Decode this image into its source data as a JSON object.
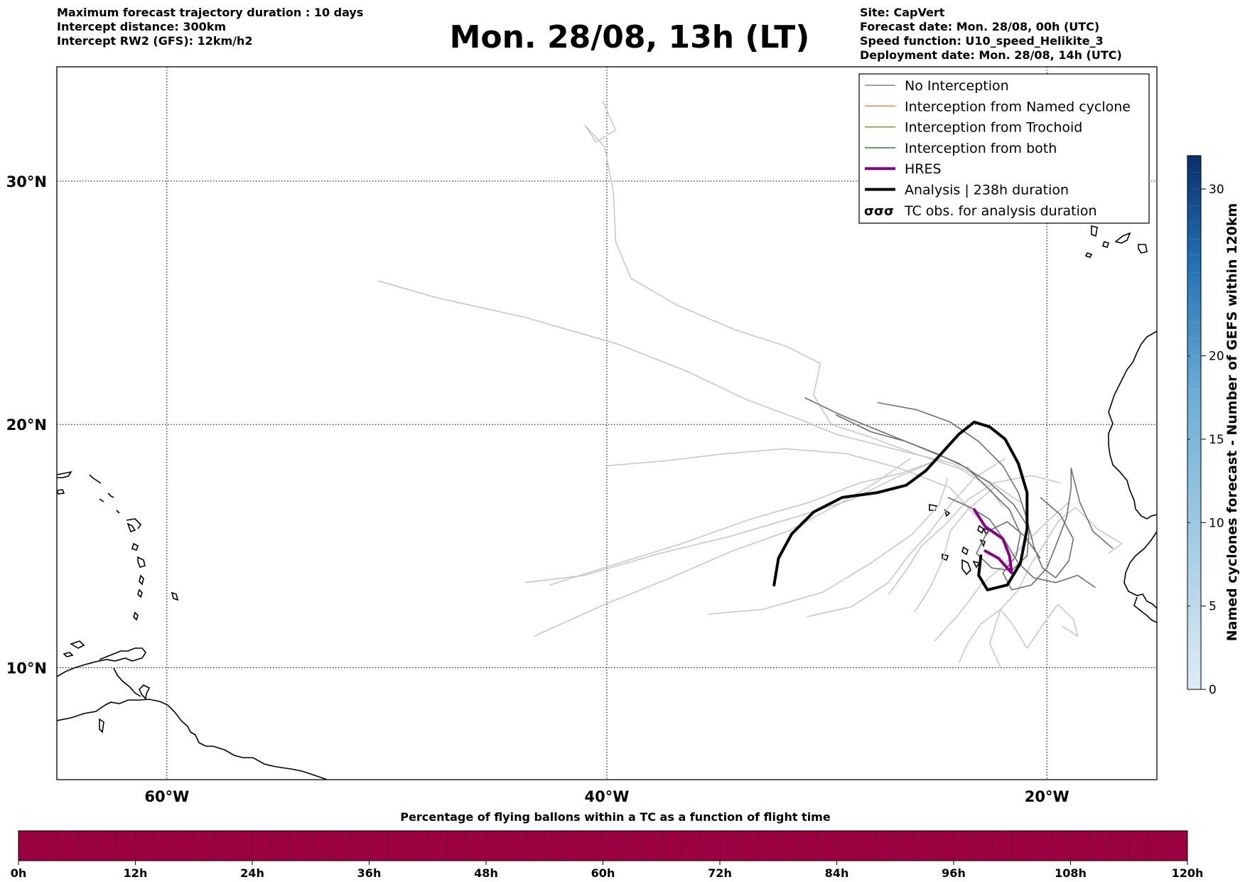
{
  "header": {
    "left_lines": [
      "Maximum forecast trajectory duration : 10 days",
      "Intercept distance: 300km",
      "Intercept RW2 (GFS):  12km/h2"
    ],
    "title": "Mon. 28/08, 13h (LT)",
    "right_lines": [
      "Site: CapVert",
      "Forecast date: Mon. 28/08, 00h (UTC)",
      "Speed function: U10_speed_Helikite_3",
      "Deployment date: Mon. 28/08, 14h (UTC)"
    ]
  },
  "map": {
    "lon_ticks": [
      "60°W",
      "40°W",
      "20°W"
    ],
    "lat_ticks": [
      "30°N",
      "20°N",
      "10°N"
    ],
    "lon_tick_values": [
      -60,
      -40,
      -20
    ],
    "lat_tick_values": [
      30,
      20,
      10
    ],
    "extent": {
      "lon": [
        -65,
        -15
      ],
      "lat": [
        5.4,
        34.7
      ]
    },
    "gridlines": "dotted"
  },
  "legend": {
    "placement": "top-right",
    "items": [
      {
        "label": "No Interception",
        "color": "#808080",
        "style": "thin"
      },
      {
        "label": "Interception from Named cyclone",
        "color": "#ff7f50",
        "style": "thin"
      },
      {
        "label": "Interception from Trochoid",
        "color": "#8b8b22",
        "style": "thin"
      },
      {
        "label": "Interception from both",
        "color": "#228b22",
        "style": "thin"
      },
      {
        "label": "HRES",
        "color": "#8b008b",
        "style": "thick"
      },
      {
        "label": "Analysis | 238h duration",
        "color": "#000000",
        "style": "thick"
      },
      {
        "label": "TC obs. for analysis duration",
        "color": "#000000",
        "style": "symbol",
        "symbol_text": "σσσ"
      }
    ]
  },
  "colorbar_right": {
    "label": "Named cyclones forecast - Number of GEFS within 120km",
    "ticks": [
      "0",
      "5",
      "10",
      "15",
      "20",
      "30"
    ],
    "tick_values": [
      0,
      5,
      10,
      15,
      20,
      30
    ],
    "max": 32,
    "colormap": "Blues"
  },
  "colorbar_bottom": {
    "title": "Percentage of flying ballons within a TC as a function of flight time",
    "ticks": [
      "0h",
      "12h",
      "24h",
      "36h",
      "48h",
      "60h",
      "72h",
      "84h",
      "96h",
      "108h",
      "120h"
    ],
    "tick_values": [
      0,
      12,
      24,
      36,
      48,
      60,
      72,
      84,
      96,
      108,
      120
    ],
    "fill_color": "#9b0040"
  },
  "chart_data": {
    "type": "line",
    "x_axis": "longitude",
    "y_axis": "latitude",
    "series": [
      {
        "name": "HRES",
        "color": "#8b008b",
        "points": [
          [
            -23.3,
            16.5
          ],
          [
            -22.8,
            15.8
          ],
          [
            -22.0,
            15.3
          ],
          [
            -21.7,
            14.6
          ],
          [
            -21.6,
            13.9
          ],
          [
            -22.2,
            14.5
          ],
          [
            -22.8,
            14.8
          ]
        ]
      },
      {
        "name": "Analysis | 238h duration",
        "color": "#000000",
        "points": [
          [
            -32.4,
            13.4
          ],
          [
            -32.2,
            14.5
          ],
          [
            -31.6,
            15.5
          ],
          [
            -30.6,
            16.4
          ],
          [
            -29.3,
            17.0
          ],
          [
            -27.7,
            17.2
          ],
          [
            -26.4,
            17.5
          ],
          [
            -25.5,
            18.1
          ],
          [
            -24.8,
            18.8
          ],
          [
            -24.0,
            19.6
          ],
          [
            -23.3,
            20.1
          ],
          [
            -22.6,
            19.9
          ],
          [
            -21.9,
            19.4
          ],
          [
            -21.3,
            18.4
          ],
          [
            -20.9,
            17.2
          ],
          [
            -20.9,
            15.7
          ],
          [
            -21.2,
            14.3
          ],
          [
            -21.8,
            13.4
          ],
          [
            -22.7,
            13.2
          ],
          [
            -23.1,
            13.8
          ],
          [
            -23.0,
            14.6
          ]
        ]
      }
    ],
    "ensemble_no_interception": [
      {
        "color": "#c8c8c8",
        "points": [
          [
            -40.2,
            33.3
          ],
          [
            -39.6,
            32.1
          ],
          [
            -40.5,
            31.6
          ],
          [
            -41.0,
            32.3
          ],
          [
            -40.1,
            31.4
          ],
          [
            -39.7,
            29.5
          ],
          [
            -39.6,
            27.5
          ],
          [
            -38.9,
            26.0
          ],
          [
            -36.8,
            24.9
          ],
          [
            -34.2,
            23.9
          ],
          [
            -31.8,
            23.2
          ],
          [
            -30.3,
            22.5
          ],
          [
            -30.6,
            21.2
          ],
          [
            -29.8,
            20.0
          ],
          [
            -28.1,
            19.5
          ],
          [
            -26.0,
            18.8
          ],
          [
            -24.0,
            18.2
          ],
          [
            -22.7,
            17.5
          ],
          [
            -22.0,
            16.6
          ]
        ]
      },
      {
        "color": "#c8c8c8",
        "points": [
          [
            -50.4,
            25.9
          ],
          [
            -47.7,
            25.2
          ],
          [
            -43.7,
            24.4
          ],
          [
            -39.5,
            23.3
          ],
          [
            -36.4,
            22.2
          ],
          [
            -33.6,
            21.0
          ],
          [
            -31.2,
            20.2
          ],
          [
            -29.6,
            19.6
          ],
          [
            -27.0,
            19.0
          ],
          [
            -24.3,
            18.4
          ],
          [
            -22.5,
            17.6
          ],
          [
            -21.2,
            16.8
          ]
        ]
      },
      {
        "color": "#c8c8c8",
        "points": [
          [
            -40.0,
            18.3
          ],
          [
            -37.4,
            18.5
          ],
          [
            -34.6,
            18.8
          ],
          [
            -31.9,
            19.0
          ],
          [
            -29.1,
            18.8
          ],
          [
            -26.7,
            18.2
          ],
          [
            -24.4,
            17.4
          ],
          [
            -23.2,
            16.2
          ]
        ]
      },
      {
        "color": "#c8c8c8",
        "points": [
          [
            -43.7,
            13.5
          ],
          [
            -41.0,
            13.8
          ],
          [
            -37.6,
            14.7
          ],
          [
            -34.4,
            15.4
          ],
          [
            -31.4,
            16.2
          ],
          [
            -28.9,
            16.9
          ],
          [
            -26.9,
            17.8
          ],
          [
            -25.3,
            18.4
          ]
        ]
      },
      {
        "color": "#c8c8c8",
        "points": [
          [
            -42.6,
            13.4
          ],
          [
            -39.8,
            14.2
          ],
          [
            -36.6,
            15.1
          ],
          [
            -33.5,
            16.1
          ],
          [
            -30.8,
            16.8
          ],
          [
            -28.5,
            17.6
          ],
          [
            -26.6,
            18.0
          ],
          [
            -24.8,
            18.6
          ]
        ]
      },
      {
        "color": "#c8c8c8",
        "points": [
          [
            -43.3,
            11.3
          ],
          [
            -40.1,
            12.6
          ],
          [
            -37.1,
            13.7
          ],
          [
            -34.3,
            14.8
          ],
          [
            -31.8,
            15.6
          ],
          [
            -29.5,
            16.7
          ],
          [
            -27.8,
            17.6
          ],
          [
            -26.2,
            18.6
          ]
        ]
      },
      {
        "color": "#c8c8c8",
        "points": [
          [
            -35.4,
            12.2
          ],
          [
            -32.9,
            12.4
          ],
          [
            -30.2,
            13.1
          ],
          [
            -28.0,
            14.3
          ],
          [
            -26.1,
            15.5
          ],
          [
            -24.9,
            16.7
          ],
          [
            -24.5,
            17.8
          ]
        ]
      },
      {
        "color": "#c8c8c8",
        "points": [
          [
            -30.9,
            12.1
          ],
          [
            -28.9,
            12.5
          ],
          [
            -27.2,
            13.5
          ],
          [
            -26.3,
            14.6
          ],
          [
            -25.3,
            15.6
          ],
          [
            -24.3,
            16.8
          ],
          [
            -23.3,
            17.8
          ],
          [
            -21.9,
            18.6
          ]
        ]
      },
      {
        "color": "#c8c8c8",
        "points": [
          [
            -25.1,
            11.1
          ],
          [
            -24.0,
            12.2
          ],
          [
            -23.0,
            13.4
          ],
          [
            -22.1,
            14.1
          ],
          [
            -21.0,
            15.1
          ],
          [
            -20.0,
            16.0
          ],
          [
            -19.0,
            16.8
          ]
        ]
      },
      {
        "color": "#c8c8c8",
        "points": [
          [
            -24.0,
            10.2
          ],
          [
            -23.6,
            11.0
          ],
          [
            -23.0,
            11.8
          ],
          [
            -22.1,
            12.4
          ],
          [
            -21.5,
            11.7
          ],
          [
            -20.9,
            10.8
          ],
          [
            -20.0,
            12.0
          ],
          [
            -19.5,
            12.6
          ],
          [
            -18.8,
            12.0
          ],
          [
            -18.6,
            11.3
          ],
          [
            -19.3,
            11.7
          ]
        ]
      },
      {
        "color": "#c8c8c8",
        "points": [
          [
            -22.1,
            10.0
          ],
          [
            -22.6,
            11.0
          ],
          [
            -22.1,
            12.4
          ],
          [
            -21.3,
            13.2
          ],
          [
            -20.7,
            14.3
          ],
          [
            -20.1,
            15.1
          ],
          [
            -19.5,
            16.0
          ],
          [
            -18.7,
            16.6
          ],
          [
            -17.7,
            15.7
          ],
          [
            -16.6,
            15.1
          ],
          [
            -17.2,
            14.7
          ]
        ]
      },
      {
        "color": "#c8c8c8",
        "points": [
          [
            -27.2,
            13.0
          ],
          [
            -26.4,
            14.0
          ],
          [
            -25.7,
            15.0
          ],
          [
            -24.6,
            15.9
          ],
          [
            -23.6,
            16.9
          ],
          [
            -22.4,
            17.6
          ],
          [
            -20.7,
            17.9
          ],
          [
            -19.4,
            17.6
          ]
        ]
      },
      {
        "color": "#c8c8c8",
        "points": [
          [
            -26.0,
            12.3
          ],
          [
            -25.3,
            13.3
          ],
          [
            -24.7,
            14.5
          ],
          [
            -24.4,
            15.6
          ],
          [
            -23.6,
            16.5
          ],
          [
            -22.4,
            17.4
          ]
        ]
      }
    ],
    "ensemble_no_interception_dark": [
      {
        "color": "#6e6e6e",
        "points": [
          [
            -31.0,
            21.1
          ],
          [
            -29.4,
            20.4
          ],
          [
            -27.5,
            19.7
          ],
          [
            -25.6,
            19.0
          ],
          [
            -24.0,
            18.4
          ],
          [
            -22.6,
            17.6
          ],
          [
            -21.5,
            16.7
          ],
          [
            -20.8,
            15.7
          ],
          [
            -20.9,
            14.6
          ],
          [
            -21.6,
            14.0
          ],
          [
            -22.5,
            14.1
          ],
          [
            -23.2,
            14.7
          ],
          [
            -22.7,
            15.6
          ],
          [
            -21.8,
            16.0
          ],
          [
            -21.0,
            15.4
          ],
          [
            -20.3,
            14.5
          ]
        ]
      },
      {
        "color": "#6e6e6e",
        "points": [
          [
            -27.7,
            20.9
          ],
          [
            -25.9,
            20.6
          ],
          [
            -24.4,
            20.1
          ],
          [
            -23.1,
            19.3
          ],
          [
            -22.0,
            18.3
          ],
          [
            -21.3,
            17.2
          ],
          [
            -20.9,
            16.1
          ],
          [
            -20.6,
            15.0
          ],
          [
            -20.2,
            14.1
          ],
          [
            -19.6,
            13.7
          ],
          [
            -19.0,
            14.4
          ],
          [
            -18.8,
            15.3
          ],
          [
            -19.4,
            16.3
          ],
          [
            -20.3,
            17.0
          ]
        ]
      },
      {
        "color": "#6e6e6e",
        "points": [
          [
            -29.6,
            20.4
          ],
          [
            -28.0,
            19.7
          ],
          [
            -26.4,
            19.3
          ],
          [
            -25.0,
            18.8
          ],
          [
            -23.6,
            18.2
          ],
          [
            -22.6,
            17.3
          ],
          [
            -21.7,
            16.5
          ],
          [
            -21.2,
            15.5
          ],
          [
            -21.4,
            14.6
          ],
          [
            -22.0,
            13.9
          ],
          [
            -21.6,
            13.2
          ],
          [
            -20.7,
            13.4
          ],
          [
            -20.0,
            14.1
          ],
          [
            -19.6,
            15.0
          ],
          [
            -19.1,
            16.2
          ],
          [
            -18.9,
            17.4
          ],
          [
            -18.9,
            18.2
          ],
          [
            -18.5,
            16.8
          ],
          [
            -17.9,
            15.6
          ],
          [
            -17.0,
            14.9
          ]
        ]
      },
      {
        "color": "#6e6e6e",
        "points": [
          [
            -24.5,
            17.0
          ],
          [
            -23.5,
            16.6
          ],
          [
            -22.6,
            16.1
          ],
          [
            -21.9,
            15.2
          ],
          [
            -21.3,
            14.3
          ],
          [
            -20.6,
            13.7
          ],
          [
            -19.6,
            13.5
          ],
          [
            -18.6,
            13.8
          ],
          [
            -17.8,
            13.3
          ]
        ]
      }
    ],
    "axis_ranges": {
      "lon": [
        -65,
        -15
      ],
      "lat": [
        5.4,
        34.7
      ]
    },
    "grid": true
  }
}
